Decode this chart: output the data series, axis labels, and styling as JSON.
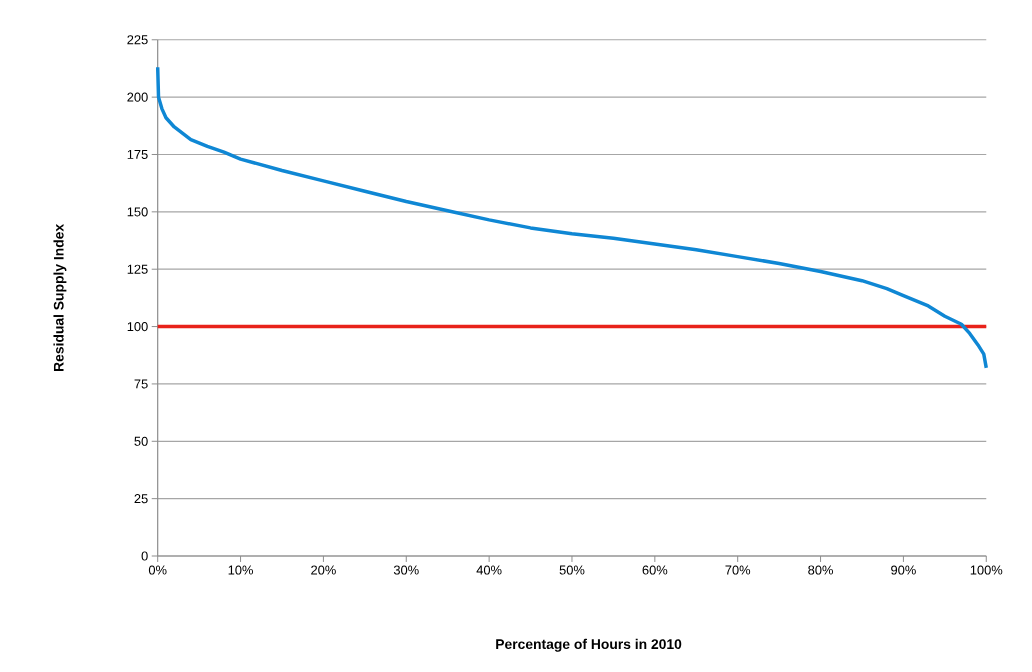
{
  "chart_data": {
    "type": "line",
    "xlabel": "Percentage of Hours in 2010",
    "ylabel": "Residual Supply Index",
    "x": [
      0,
      0.1,
      0.5,
      1,
      2,
      4,
      6,
      8,
      10,
      15,
      20,
      25,
      30,
      35,
      40,
      45,
      50,
      55,
      60,
      65,
      70,
      75,
      80,
      85,
      88,
      90,
      93,
      95,
      97,
      98,
      99,
      99.7,
      100
    ],
    "series": [
      {
        "color": "#0f87d4",
        "values": [
          213,
          200,
          195,
          191,
          187,
          181.5,
          178.5,
          176,
          173,
          168,
          163.5,
          159,
          154.5,
          150.5,
          146.5,
          143,
          140.5,
          138.5,
          136,
          133.5,
          130.5,
          127.5,
          124,
          120,
          116.5,
          113.5,
          109,
          104.5,
          101,
          97,
          92,
          88,
          82
        ]
      }
    ],
    "xlim": [
      0,
      100
    ],
    "xticks": [
      {
        "value": 0,
        "label": "0%"
      },
      {
        "value": 10,
        "label": "10%"
      },
      {
        "value": 20,
        "label": "20%"
      },
      {
        "value": 30,
        "label": "30%"
      },
      {
        "value": 40,
        "label": "40%"
      },
      {
        "value": 50,
        "label": "50%"
      },
      {
        "value": 60,
        "label": "60%"
      },
      {
        "value": 70,
        "label": "70%"
      },
      {
        "value": 80,
        "label": "80%"
      },
      {
        "value": 90,
        "label": "90%"
      },
      {
        "value": 100,
        "label": "100%"
      }
    ],
    "ylim": [
      0,
      225
    ],
    "yticks": [
      0,
      25,
      50,
      75,
      100,
      125,
      150,
      175,
      200,
      225
    ],
    "ref_lines": [
      {
        "axis": "y",
        "value": 100,
        "color": "#e8221a"
      }
    ],
    "grid": "y",
    "marker": "none",
    "line_style": "solid"
  }
}
